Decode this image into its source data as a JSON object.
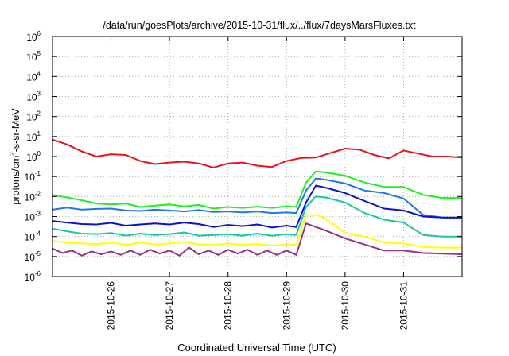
{
  "chart_data": {
    "type": "line",
    "title": "/data/run/goesPlots/archive/2015-10-31/flux/../flux/7daysMarsFluxes.txt",
    "xlabel": "Coordinated Universal Time (UTC)",
    "ylabel": {
      "prefix": "protons/cm",
      "sup": "2",
      "suffix": "-s-sr-MeV"
    },
    "yscale": "log",
    "ylim": [
      1e-06,
      1000000.0
    ],
    "yticks": [
      {
        "base": "10",
        "exp": "-6",
        "value": 1e-06
      },
      {
        "base": "10",
        "exp": "-5",
        "value": 1e-05
      },
      {
        "base": "10",
        "exp": "-4",
        "value": 0.0001
      },
      {
        "base": "10",
        "exp": "-3",
        "value": 0.001
      },
      {
        "base": "10",
        "exp": "-2",
        "value": 0.01
      },
      {
        "base": "10",
        "exp": "-1",
        "value": 0.1
      },
      {
        "base": "10",
        "exp": "0",
        "value": 1
      },
      {
        "base": "10",
        "exp": "1",
        "value": 10
      },
      {
        "base": "10",
        "exp": "2",
        "value": 100
      },
      {
        "base": "10",
        "exp": "3",
        "value": 1000
      },
      {
        "base": "10",
        "exp": "4",
        "value": 10000
      },
      {
        "base": "10",
        "exp": "5",
        "value": 100000
      },
      {
        "base": "10",
        "exp": "6",
        "value": 1000000
      }
    ],
    "xlim": [
      "2015-10-25T00:00",
      "2015-11-01T00:00"
    ],
    "xticks": [
      {
        "label": "2015-10-26",
        "x": "2015-10-26T00:00"
      },
      {
        "label": "2015-10-27",
        "x": "2015-10-27T00:00"
      },
      {
        "label": "2015-10-28",
        "x": "2015-10-28T00:00"
      },
      {
        "label": "2015-10-29",
        "x": "2015-10-29T00:00"
      },
      {
        "label": "2015-10-30",
        "x": "2015-10-30T00:00"
      },
      {
        "label": "2015-10-31",
        "x": "2015-10-31T00:00"
      }
    ],
    "grid": true,
    "legend": "none",
    "series": [
      {
        "color": "#e8141a",
        "points": [
          [
            "2015-10-25T00:00",
            7
          ],
          [
            "2015-10-25T06:00",
            4
          ],
          [
            "2015-10-25T12:00",
            1.8
          ],
          [
            "2015-10-25T18:00",
            1.0
          ],
          [
            "2015-10-26T00:00",
            1.3
          ],
          [
            "2015-10-26T06:00",
            1.2
          ],
          [
            "2015-10-26T12:00",
            0.6
          ],
          [
            "2015-10-26T18:00",
            0.42
          ],
          [
            "2015-10-27T00:00",
            0.5
          ],
          [
            "2015-10-27T06:00",
            0.55
          ],
          [
            "2015-10-27T12:00",
            0.45
          ],
          [
            "2015-10-27T18:00",
            0.28
          ],
          [
            "2015-10-28T00:00",
            0.45
          ],
          [
            "2015-10-28T06:00",
            0.5
          ],
          [
            "2015-10-28T12:00",
            0.35
          ],
          [
            "2015-10-28T18:00",
            0.3
          ],
          [
            "2015-10-29T00:00",
            0.6
          ],
          [
            "2015-10-29T06:00",
            0.85
          ],
          [
            "2015-10-29T12:00",
            0.9
          ],
          [
            "2015-10-29T18:00",
            1.5
          ],
          [
            "2015-10-30T00:00",
            2.5
          ],
          [
            "2015-10-30T06:00",
            2.2
          ],
          [
            "2015-10-30T12:00",
            1.2
          ],
          [
            "2015-10-30T18:00",
            0.8
          ],
          [
            "2015-10-31T00:00",
            2.0
          ],
          [
            "2015-10-31T06:00",
            1.4
          ],
          [
            "2015-10-31T12:00",
            1.0
          ],
          [
            "2015-10-31T18:00",
            1.0
          ],
          [
            "2015-11-01T00:00",
            0.9
          ]
        ]
      },
      {
        "color": "#22ee22",
        "points": [
          [
            "2015-10-25T00:00",
            0.012
          ],
          [
            "2015-10-25T06:00",
            0.009
          ],
          [
            "2015-10-25T12:00",
            0.0065
          ],
          [
            "2015-10-25T18:00",
            0.0045
          ],
          [
            "2015-10-26T00:00",
            0.004
          ],
          [
            "2015-10-26T06:00",
            0.0045
          ],
          [
            "2015-10-26T12:00",
            0.003
          ],
          [
            "2015-10-26T18:00",
            0.0035
          ],
          [
            "2015-10-27T00:00",
            0.004
          ],
          [
            "2015-10-27T06:00",
            0.0032
          ],
          [
            "2015-10-27T12:00",
            0.0038
          ],
          [
            "2015-10-27T18:00",
            0.0025
          ],
          [
            "2015-10-28T00:00",
            0.003
          ],
          [
            "2015-10-28T06:00",
            0.0027
          ],
          [
            "2015-10-28T12:00",
            0.0031
          ],
          [
            "2015-10-28T18:00",
            0.0027
          ],
          [
            "2015-10-29T00:00",
            0.0032
          ],
          [
            "2015-10-29T04:00",
            0.003
          ],
          [
            "2015-10-29T08:00",
            0.05
          ],
          [
            "2015-10-29T12:00",
            0.18
          ],
          [
            "2015-10-29T16:00",
            0.16
          ],
          [
            "2015-10-30T00:00",
            0.11
          ],
          [
            "2015-10-30T08:00",
            0.05
          ],
          [
            "2015-10-30T16:00",
            0.03
          ],
          [
            "2015-10-31T00:00",
            0.03
          ],
          [
            "2015-10-31T08:00",
            0.012
          ],
          [
            "2015-10-31T16:00",
            0.0085
          ],
          [
            "2015-11-01T00:00",
            0.0085
          ]
        ]
      },
      {
        "color": "#1e78e6",
        "points": [
          [
            "2015-10-25T00:00",
            0.0022
          ],
          [
            "2015-10-25T06:00",
            0.0028
          ],
          [
            "2015-10-25T12:00",
            0.0022
          ],
          [
            "2015-10-25T18:00",
            0.0024
          ],
          [
            "2015-10-26T00:00",
            0.0025
          ],
          [
            "2015-10-26T06:00",
            0.002
          ],
          [
            "2015-10-26T12:00",
            0.0019
          ],
          [
            "2015-10-26T18:00",
            0.0022
          ],
          [
            "2015-10-27T00:00",
            0.002
          ],
          [
            "2015-10-27T06:00",
            0.0018
          ],
          [
            "2015-10-27T12:00",
            0.0021
          ],
          [
            "2015-10-27T18:00",
            0.0017
          ],
          [
            "2015-10-28T00:00",
            0.0018
          ],
          [
            "2015-10-28T06:00",
            0.0016
          ],
          [
            "2015-10-28T12:00",
            0.0018
          ],
          [
            "2015-10-28T18:00",
            0.0015
          ],
          [
            "2015-10-29T00:00",
            0.0016
          ],
          [
            "2015-10-29T04:00",
            0.0015
          ],
          [
            "2015-10-29T08:00",
            0.02
          ],
          [
            "2015-10-29T12:00",
            0.08
          ],
          [
            "2015-10-29T16:00",
            0.07
          ],
          [
            "2015-10-30T00:00",
            0.045
          ],
          [
            "2015-10-30T08:00",
            0.02
          ],
          [
            "2015-10-30T16:00",
            0.015
          ],
          [
            "2015-10-31T00:00",
            0.008
          ],
          [
            "2015-10-31T08:00",
            0.0012
          ],
          [
            "2015-10-31T16:00",
            0.0009
          ],
          [
            "2015-11-01T00:00",
            0.0008
          ]
        ]
      },
      {
        "color": "#0a14c8",
        "points": [
          [
            "2015-10-25T00:00",
            0.0006
          ],
          [
            "2015-10-25T06:00",
            0.0005
          ],
          [
            "2015-10-25T12:00",
            0.00042
          ],
          [
            "2015-10-25T18:00",
            0.0004
          ],
          [
            "2015-10-26T00:00",
            0.00048
          ],
          [
            "2015-10-26T06:00",
            0.00035
          ],
          [
            "2015-10-26T12:00",
            0.0004
          ],
          [
            "2015-10-26T18:00",
            0.00045
          ],
          [
            "2015-10-27T00:00",
            0.0004
          ],
          [
            "2015-10-27T06:00",
            0.0005
          ],
          [
            "2015-10-27T12:00",
            0.00042
          ],
          [
            "2015-10-27T18:00",
            0.0003
          ],
          [
            "2015-10-28T00:00",
            0.00038
          ],
          [
            "2015-10-28T06:00",
            0.00033
          ],
          [
            "2015-10-28T12:00",
            0.0004
          ],
          [
            "2015-10-28T18:00",
            0.00028
          ],
          [
            "2015-10-29T00:00",
            0.00035
          ],
          [
            "2015-10-29T04:00",
            0.0003
          ],
          [
            "2015-10-29T08:00",
            0.005
          ],
          [
            "2015-10-29T12:00",
            0.035
          ],
          [
            "2015-10-29T16:00",
            0.028
          ],
          [
            "2015-10-30T00:00",
            0.015
          ],
          [
            "2015-10-30T08:00",
            0.006
          ],
          [
            "2015-10-30T16:00",
            0.0025
          ],
          [
            "2015-10-31T00:00",
            0.002
          ],
          [
            "2015-10-31T08:00",
            0.001
          ],
          [
            "2015-10-31T16:00",
            0.0009
          ],
          [
            "2015-11-01T00:00",
            0.0009
          ]
        ]
      },
      {
        "color": "#18c8a0",
        "points": [
          [
            "2015-10-25T00:00",
            0.00025
          ],
          [
            "2015-10-25T06:00",
            0.00018
          ],
          [
            "2015-10-25T12:00",
            0.00014
          ],
          [
            "2015-10-25T18:00",
            0.00013
          ],
          [
            "2015-10-26T00:00",
            0.00015
          ],
          [
            "2015-10-26T06:00",
            0.00011
          ],
          [
            "2015-10-26T12:00",
            0.00014
          ],
          [
            "2015-10-26T18:00",
            0.00012
          ],
          [
            "2015-10-27T00:00",
            0.00013
          ],
          [
            "2015-10-27T06:00",
            0.00016
          ],
          [
            "2015-10-27T12:00",
            0.00011
          ],
          [
            "2015-10-27T18:00",
            0.00012
          ],
          [
            "2015-10-28T00:00",
            0.00013
          ],
          [
            "2015-10-28T06:00",
            0.00011
          ],
          [
            "2015-10-28T12:00",
            0.00014
          ],
          [
            "2015-10-28T18:00",
            0.00011
          ],
          [
            "2015-10-29T00:00",
            0.00013
          ],
          [
            "2015-10-29T04:00",
            0.00012
          ],
          [
            "2015-10-29T08:00",
            0.003
          ],
          [
            "2015-10-29T12:00",
            0.01
          ],
          [
            "2015-10-29T16:00",
            0.009
          ],
          [
            "2015-10-30T00:00",
            0.005
          ],
          [
            "2015-10-30T08:00",
            0.0015
          ],
          [
            "2015-10-30T16:00",
            0.0007
          ],
          [
            "2015-10-31T00:00",
            0.0005
          ],
          [
            "2015-10-31T08:00",
            0.00012
          ],
          [
            "2015-10-31T16:00",
            0.0001
          ],
          [
            "2015-11-01T00:00",
            0.0001
          ]
        ]
      },
      {
        "color": "#ffff00",
        "points": [
          [
            "2015-10-25T00:00",
            6e-05
          ],
          [
            "2015-10-25T06:00",
            5e-05
          ],
          [
            "2015-10-25T12:00",
            4.5e-05
          ],
          [
            "2015-10-25T18:00",
            4.2e-05
          ],
          [
            "2015-10-26T00:00",
            5e-05
          ],
          [
            "2015-10-26T06:00",
            3.8e-05
          ],
          [
            "2015-10-26T12:00",
            5e-05
          ],
          [
            "2015-10-26T18:00",
            4e-05
          ],
          [
            "2015-10-27T00:00",
            4.5e-05
          ],
          [
            "2015-10-27T06:00",
            5.5e-05
          ],
          [
            "2015-10-27T12:00",
            4e-05
          ],
          [
            "2015-10-27T18:00",
            3.8e-05
          ],
          [
            "2015-10-28T00:00",
            4.5e-05
          ],
          [
            "2015-10-28T06:00",
            3.8e-05
          ],
          [
            "2015-10-28T12:00",
            4.2e-05
          ],
          [
            "2015-10-28T18:00",
            3.5e-05
          ],
          [
            "2015-10-29T00:00",
            4e-05
          ],
          [
            "2015-10-29T04:00",
            4e-05
          ],
          [
            "2015-10-29T08:00",
            0.0012
          ],
          [
            "2015-10-29T12:00",
            0.0012
          ],
          [
            "2015-10-29T16:00",
            0.0008
          ],
          [
            "2015-10-30T00:00",
            0.00015
          ],
          [
            "2015-10-30T08:00",
            0.0001
          ],
          [
            "2015-10-30T16:00",
            5e-05
          ],
          [
            "2015-10-31T00:00",
            4.5e-05
          ],
          [
            "2015-10-31T08:00",
            3e-05
          ],
          [
            "2015-10-31T16:00",
            2.8e-05
          ],
          [
            "2015-11-01T00:00",
            2.8e-05
          ]
        ]
      },
      {
        "color": "#993380",
        "points": [
          [
            "2015-10-25T00:00",
            2.5e-05
          ],
          [
            "2015-10-25T04:00",
            1.5e-05
          ],
          [
            "2015-10-25T08:00",
            2e-05
          ],
          [
            "2015-10-25T12:00",
            1.1e-05
          ],
          [
            "2015-10-25T16:00",
            1.8e-05
          ],
          [
            "2015-10-25T20:00",
            1.3e-05
          ],
          [
            "2015-10-26T00:00",
            1.8e-05
          ],
          [
            "2015-10-26T04:00",
            1.2e-05
          ],
          [
            "2015-10-26T08:00",
            2e-05
          ],
          [
            "2015-10-26T12:00",
            1.2e-05
          ],
          [
            "2015-10-26T16:00",
            2.2e-05
          ],
          [
            "2015-10-26T20:00",
            1.4e-05
          ],
          [
            "2015-10-27T00:00",
            2e-05
          ],
          [
            "2015-10-27T04:00",
            1.1e-05
          ],
          [
            "2015-10-27T08:00",
            2.8e-05
          ],
          [
            "2015-10-27T12:00",
            1.3e-05
          ],
          [
            "2015-10-27T16:00",
            2e-05
          ],
          [
            "2015-10-27T20:00",
            1.2e-05
          ],
          [
            "2015-10-28T00:00",
            2.2e-05
          ],
          [
            "2015-10-28T04:00",
            1.4e-05
          ],
          [
            "2015-10-28T08:00",
            2.2e-05
          ],
          [
            "2015-10-28T12:00",
            1.2e-05
          ],
          [
            "2015-10-28T16:00",
            2e-05
          ],
          [
            "2015-10-28T20:00",
            1.2e-05
          ],
          [
            "2015-10-29T00:00",
            2e-05
          ],
          [
            "2015-10-29T04:00",
            1.2e-05
          ],
          [
            "2015-10-29T08:00",
            0.00045
          ],
          [
            "2015-10-29T12:00",
            0.0003
          ],
          [
            "2015-10-29T16:00",
            0.0002
          ],
          [
            "2015-10-30T00:00",
            8e-05
          ],
          [
            "2015-10-30T08:00",
            4e-05
          ],
          [
            "2015-10-30T16:00",
            2e-05
          ],
          [
            "2015-10-31T00:00",
            2e-05
          ],
          [
            "2015-10-31T08:00",
            1.5e-05
          ],
          [
            "2015-10-31T16:00",
            1.4e-05
          ],
          [
            "2015-11-01T00:00",
            1.3e-05
          ]
        ]
      }
    ]
  }
}
